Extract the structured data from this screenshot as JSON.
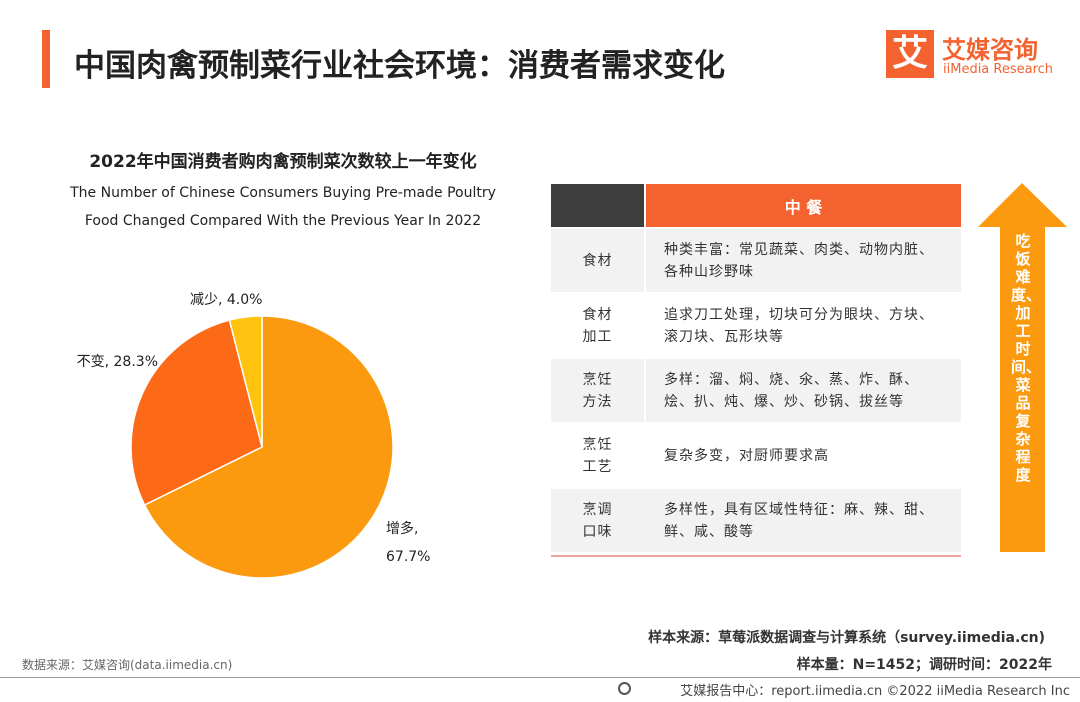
{
  "header": {
    "title": "中国肉禽预制菜行业社会环境：消费者需求变化",
    "logo_mark": "艾",
    "logo_name": "艾媒咨询",
    "logo_sub": "iiMedia Research"
  },
  "chart_data": {
    "type": "pie",
    "title": "2022年中国消费者购肉禽预制菜次数较上一年变化",
    "subtitle": "The Number of Chinese Consumers Buying Pre-made Poultry Food Changed Compared With the Previous Year In 2022",
    "categories": [
      "增多",
      "不变",
      "减少"
    ],
    "values": [
      67.7,
      28.3,
      4.0
    ],
    "value_labels": [
      "增多, 67.7%",
      "不变, 28.3%",
      "减少, 4.0%"
    ],
    "colors": [
      "#fb9a0e",
      "#fd6a17",
      "#ffc20e"
    ]
  },
  "table": {
    "header": "中 餐",
    "rows": [
      [
        "食材",
        "种类丰富：常见蔬菜、肉类、动物内脏、各种山珍野味"
      ],
      [
        "食材加工",
        "追求刀工处理，切块可分为眼块、方块、滚刀块、瓦形块等"
      ],
      [
        "烹饪方法",
        "多样：溜、焖、烧、氽、蒸、炸、酥、烩、扒、炖、爆、炒、砂锅、拔丝等"
      ],
      [
        "烹饪工艺",
        "复杂多变，对厨师要求高"
      ],
      [
        "烹调口味",
        "多样性，具有区域性特征：麻、辣、甜、鲜、咸、酸等"
      ]
    ]
  },
  "arrow_text": "吃饭难度、加工时间、菜品复杂程度",
  "footer": {
    "sample_source": "样本来源：草莓派数据调查与计算系统（survey.iimedia.cn)",
    "sample_size": "样本量：N=1452；调研时间：2022年",
    "data_source": "数据来源：艾媒咨询(data.iimedia.cn)",
    "copyright": "艾媒报告中心：report.iimedia.cn ©2022 iiMedia Research Inc"
  }
}
